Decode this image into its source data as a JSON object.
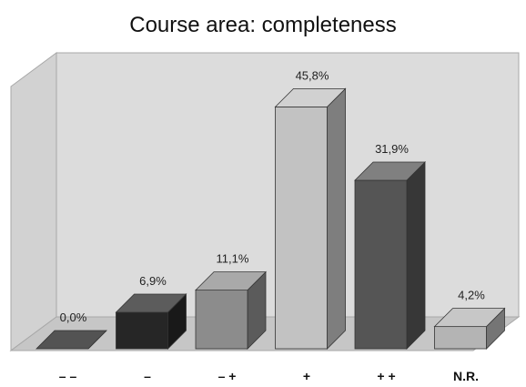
{
  "chart_data": {
    "type": "bar",
    "title": "Course area: completeness",
    "categories": [
      "– –",
      "–",
      "– +",
      "+",
      "+ +",
      "N.R."
    ],
    "values": [
      0.0,
      6.9,
      11.1,
      45.8,
      31.9,
      4.2
    ],
    "data_labels": [
      "0,0%",
      "6,9%",
      "11,1%",
      "45,8%",
      "31,9%",
      "4,2%"
    ],
    "bar_colors": [
      "#1a1a1a",
      "#262626",
      "#8c8c8c",
      "#c2c2c2",
      "#555555",
      "#b4b4b4"
    ],
    "ylim": [
      0,
      50
    ],
    "grid": false,
    "legend": "none",
    "style": "3d"
  }
}
